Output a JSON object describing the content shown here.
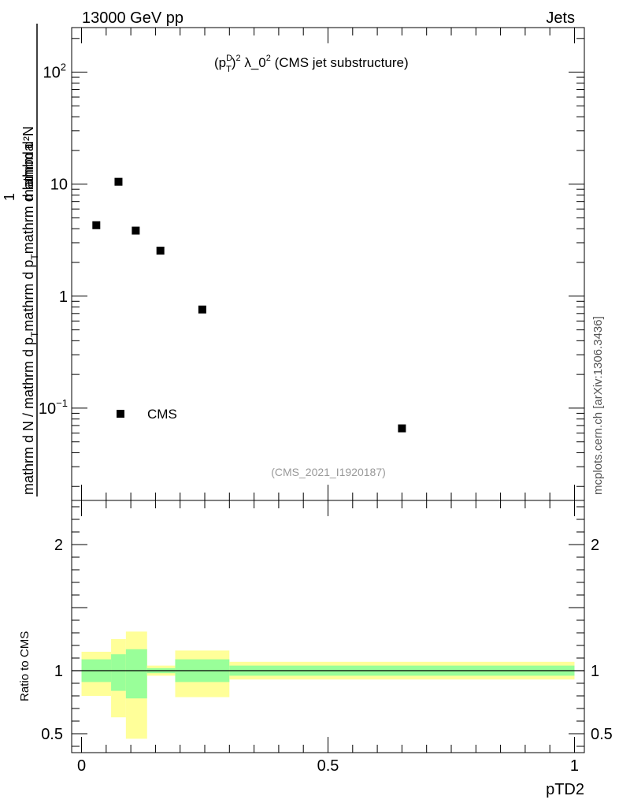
{
  "header": {
    "left": "13000 GeV pp",
    "right": "Jets"
  },
  "plot_title_parts": {
    "open": "(p",
    "sup1": "D",
    "sub1": "T",
    "close": ")",
    "sup2": "2",
    "mid": " λ_0",
    "sup3": "2",
    "tail": " (CMS jet substructure)"
  },
  "analysis_id": "(CMS_2021_I1920187)",
  "side_credit": "mcplots.cern.ch [arXiv:1306.3436]",
  "ylabel_main": {
    "num": "mathrm d²N",
    "den_one": "1",
    "den_text": "mathrm d N / mathrm d p",
    "den_sub": "T",
    "den_tail": "mathrm d p",
    "den_sub2": "T",
    "den_end": "mathrm d lambda"
  },
  "ylabel_ratio": "Ratio to CMS",
  "xlabel": "pTD2",
  "legend": {
    "label": "CMS"
  },
  "colors": {
    "data": "#000000",
    "band_inner": "#99ff99",
    "band_outer": "#ffff99"
  },
  "chart_data": [
    {
      "type": "scatter",
      "scale": "log",
      "xlim": [
        -0.02,
        1.02
      ],
      "ylim": [
        0.015,
        250
      ],
      "y_ticks": [
        {
          "value": 0.1,
          "mant": "10",
          "exp": "−1"
        },
        {
          "value": 1,
          "mant": "1",
          "exp": ""
        },
        {
          "value": 10,
          "mant": "10",
          "exp": ""
        },
        {
          "value": 100,
          "mant": "10",
          "exp": "2"
        }
      ],
      "series": [
        {
          "name": "CMS",
          "points": [
            {
              "x": 0.03,
              "y": 4.3
            },
            {
              "x": 0.075,
              "y": 10.5
            },
            {
              "x": 0.11,
              "y": 3.85
            },
            {
              "x": 0.16,
              "y": 2.55
            },
            {
              "x": 0.245,
              "y": 0.76
            },
            {
              "x": 0.65,
              "y": 0.066
            }
          ]
        }
      ]
    },
    {
      "type": "area",
      "name": "ratio",
      "xlim": [
        -0.02,
        1.02
      ],
      "ylim": [
        0.35,
        2.35
      ],
      "x_ticks": [
        {
          "value": 0,
          "label": "0"
        },
        {
          "value": 0.5,
          "label": "0.5"
        },
        {
          "value": 1,
          "label": "1"
        }
      ],
      "y_ticks": [
        {
          "value": 0.5,
          "label": "0.5"
        },
        {
          "value": 1,
          "label": "1"
        },
        {
          "value": 2,
          "label": "2"
        }
      ],
      "reference_line": 1,
      "bins": [
        {
          "x0": 0.0,
          "x1": 0.06,
          "outer": [
            0.8,
            1.15
          ],
          "inner": [
            0.91,
            1.09
          ]
        },
        {
          "x0": 0.06,
          "x1": 0.09,
          "outer": [
            0.63,
            1.25
          ],
          "inner": [
            0.84,
            1.13
          ]
        },
        {
          "x0": 0.09,
          "x1": 0.133,
          "outer": [
            0.46,
            1.31
          ],
          "inner": [
            0.78,
            1.17
          ]
        },
        {
          "x0": 0.133,
          "x1": 0.19,
          "outer": [
            0.96,
            1.04
          ],
          "inner": [
            0.98,
            1.02
          ]
        },
        {
          "x0": 0.19,
          "x1": 0.3,
          "outer": [
            0.79,
            1.16
          ],
          "inner": [
            0.91,
            1.09
          ]
        },
        {
          "x0": 0.3,
          "x1": 1.0,
          "outer": [
            0.93,
            1.07
          ],
          "inner": [
            0.96,
            1.04
          ]
        }
      ]
    }
  ]
}
